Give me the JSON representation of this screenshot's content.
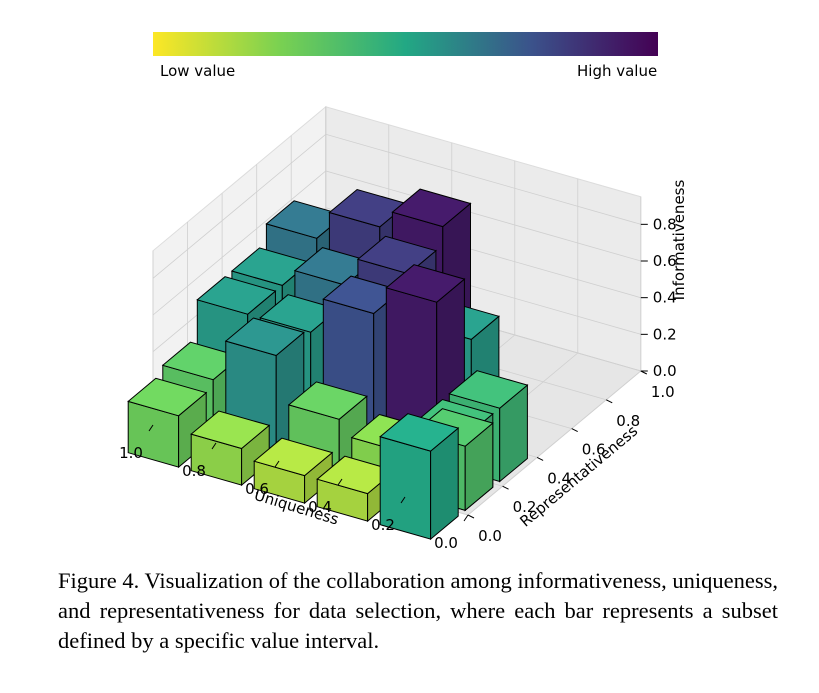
{
  "colorbar": {
    "low_label": "Low value",
    "high_label": "High value",
    "colormap": "viridis (reversed: yellow = low, purple = high)"
  },
  "chart_data": {
    "type": "bar3d",
    "xlabel": "Uniqueness",
    "ylabel": "Representativeness",
    "zlabel": "Informativeness",
    "x_ticks": [
      "1.0",
      "0.8",
      "0.6",
      "0.4",
      "0.2",
      "0.0"
    ],
    "y_ticks": [
      "0.0",
      "0.2",
      "0.4",
      "0.6",
      "0.8",
      "1.0"
    ],
    "z_ticks": [
      "0.0",
      "0.2",
      "0.4",
      "0.6",
      "0.8"
    ],
    "xlim": [
      0,
      1
    ],
    "ylim": [
      0,
      1
    ],
    "zlim": [
      0,
      0.95
    ],
    "bars": [
      {
        "uniqueness": 0.9,
        "representativeness": 0.7,
        "informativeness": 0.62
      },
      {
        "uniqueness": 0.7,
        "representativeness": 0.7,
        "informativeness": 0.78
      },
      {
        "uniqueness": 0.5,
        "representativeness": 0.7,
        "informativeness": 0.88
      },
      {
        "uniqueness": 0.9,
        "representativeness": 0.5,
        "informativeness": 0.52
      },
      {
        "uniqueness": 0.7,
        "representativeness": 0.5,
        "informativeness": 0.62
      },
      {
        "uniqueness": 0.5,
        "representativeness": 0.5,
        "informativeness": 0.78
      },
      {
        "uniqueness": 0.3,
        "representativeness": 0.5,
        "informativeness": 0.52
      },
      {
        "uniqueness": 0.9,
        "representativeness": 0.3,
        "informativeness": 0.52
      },
      {
        "uniqueness": 0.7,
        "representativeness": 0.3,
        "informativeness": 0.52
      },
      {
        "uniqueness": 0.5,
        "representativeness": 0.3,
        "informativeness": 0.72
      },
      {
        "uniqueness": 0.3,
        "representativeness": 0.3,
        "informativeness": 0.88
      },
      {
        "uniqueness": 0.1,
        "representativeness": 0.3,
        "informativeness": 0.4
      },
      {
        "uniqueness": 0.9,
        "representativeness": 0.1,
        "informativeness": 0.32
      },
      {
        "uniqueness": 0.7,
        "representativeness": 0.1,
        "informativeness": 0.55
      },
      {
        "uniqueness": 0.5,
        "representativeness": 0.1,
        "informativeness": 0.3
      },
      {
        "uniqueness": 0.3,
        "representativeness": 0.1,
        "informativeness": 0.22
      },
      {
        "uniqueness": 0.1,
        "representativeness": 0.1,
        "informativeness": 0.4
      },
      {
        "uniqueness": 0.9,
        "representativeness": -0.1,
        "informativeness": 0.28
      },
      {
        "uniqueness": 0.7,
        "representativeness": -0.1,
        "informativeness": 0.2
      },
      {
        "uniqueness": 0.5,
        "representativeness": -0.1,
        "informativeness": 0.15
      },
      {
        "uniqueness": 0.3,
        "representativeness": -0.1,
        "informativeness": 0.15
      },
      {
        "uniqueness": 0.1,
        "representativeness": -0.1,
        "informativeness": 0.48
      },
      {
        "uniqueness": 0.1,
        "representativeness": 0.1,
        "informativeness": 0.35
      }
    ]
  },
  "caption": "Figure 4.  Visualization of the collaboration among informativeness, uniqueness, and representativeness for data selection, where each bar represents a subset defined by a specific value interval."
}
